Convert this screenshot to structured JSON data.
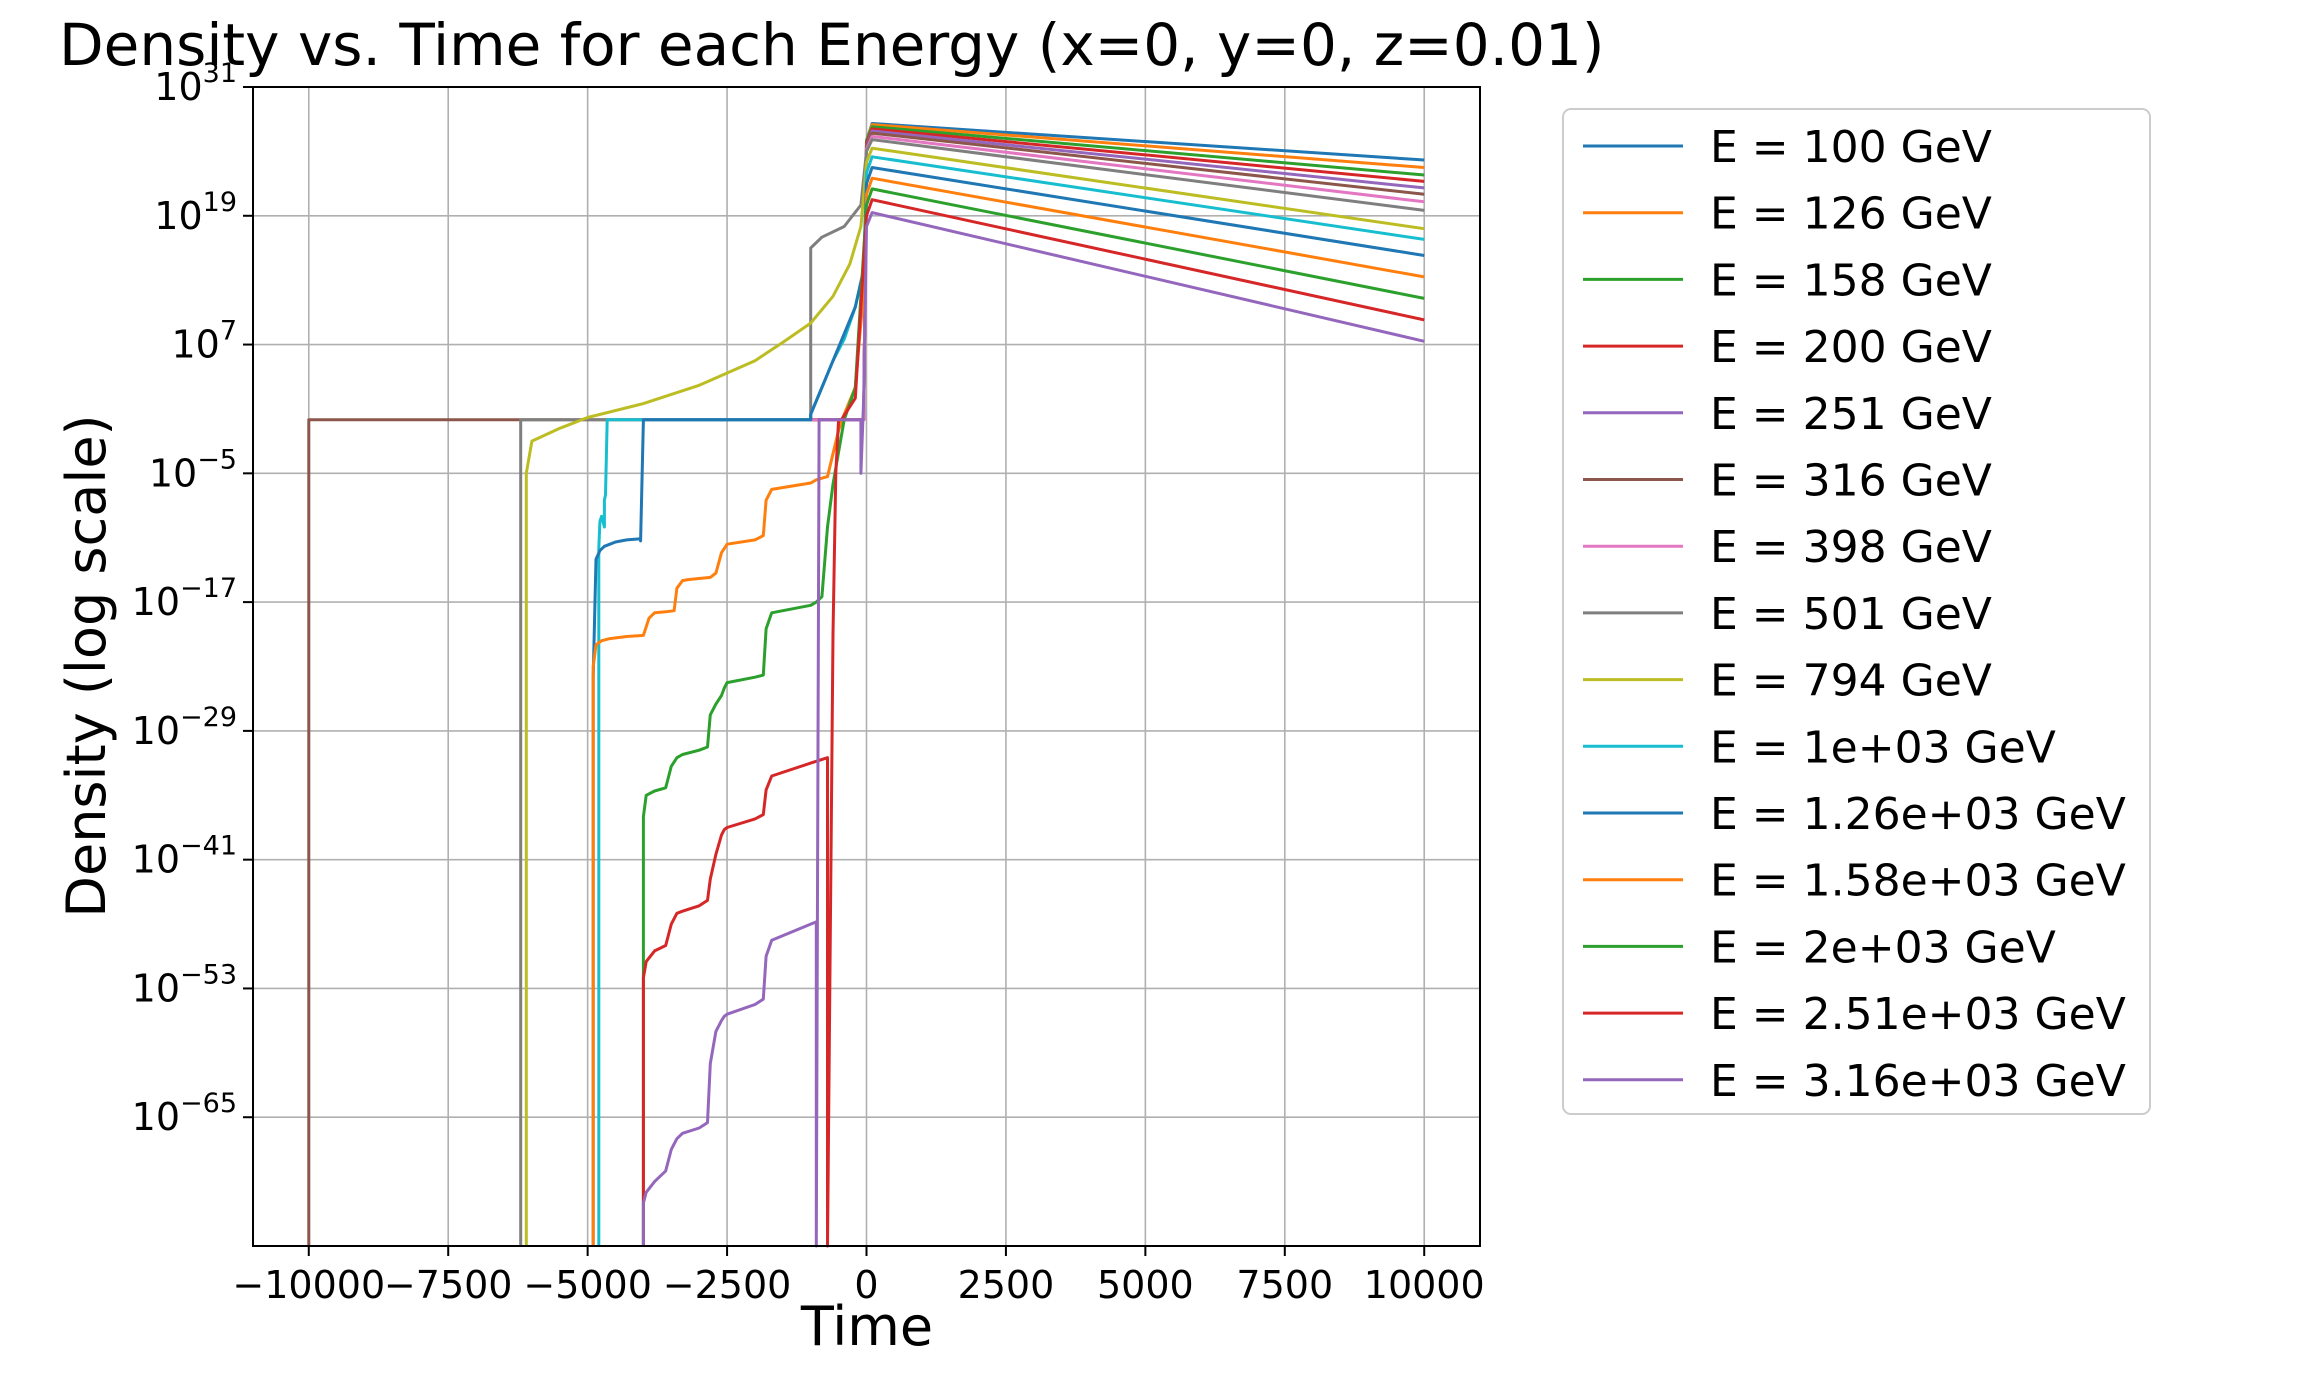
{
  "chart_data": {
    "type": "line",
    "title": "Density vs. Time for each Energy (x=0, y=0, z=0.01)",
    "xlabel": "Time",
    "ylabel": "Density (log scale)",
    "xlim": [
      -11000,
      11000
    ],
    "ylim_exponent": [
      -77,
      31
    ],
    "log_y": true,
    "grid": true,
    "legend_position": "outside right",
    "x_ticks": [
      {
        "value": -10000,
        "label": "−10000"
      },
      {
        "value": -7500,
        "label": "−7500"
      },
      {
        "value": -5000,
        "label": "−5000"
      },
      {
        "value": -2500,
        "label": "−2500"
      },
      {
        "value": 0,
        "label": "0"
      },
      {
        "value": 2500,
        "label": "2500"
      },
      {
        "value": 5000,
        "label": "5000"
      },
      {
        "value": 7500,
        "label": "7500"
      },
      {
        "value": 10000,
        "label": "10000"
      }
    ],
    "y_ticks": [
      {
        "exp": 31,
        "label": "31"
      },
      {
        "exp": 19,
        "label": "19"
      },
      {
        "exp": 7,
        "label": "7"
      },
      {
        "exp": -5,
        "label": "−5"
      },
      {
        "exp": -17,
        "label": "−17"
      },
      {
        "exp": -29,
        "label": "−29"
      },
      {
        "exp": -41,
        "label": "−41"
      },
      {
        "exp": -53,
        "label": "−53"
      },
      {
        "exp": -65,
        "label": "−65"
      }
    ],
    "tick_base": "10",
    "series": [
      {
        "name": "E = 100 GeV",
        "color": "#1f77b4",
        "x": [
          -1000,
          -400,
          -50,
          0,
          100,
          10000
        ],
        "y_exp": [
          0,
          0,
          0,
          26,
          27.6,
          24.2
        ]
      },
      {
        "name": "E = 126 GeV",
        "color": "#ff7f0e",
        "x": [
          -1000,
          -400,
          -50,
          0,
          100,
          10000
        ],
        "y_exp": [
          0,
          0,
          0,
          26,
          27.5,
          23.5
        ]
      },
      {
        "name": "E = 158 GeV",
        "color": "#2ca02c",
        "x": [
          -1000,
          -400,
          -50,
          0,
          100,
          10000
        ],
        "y_exp": [
          0,
          0,
          0,
          26,
          27.3,
          22.8
        ]
      },
      {
        "name": "E = 200 GeV",
        "color": "#d62728",
        "x": [
          -1000,
          -400,
          -50,
          0,
          100,
          10000
        ],
        "y_exp": [
          0,
          0,
          0,
          25.8,
          27.1,
          22.2
        ]
      },
      {
        "name": "E = 251 GeV",
        "color": "#9467bd",
        "x": [
          -1000,
          -400,
          -50,
          0,
          100,
          10000
        ],
        "y_exp": [
          0,
          0,
          0,
          25.6,
          26.9,
          21.6
        ]
      },
      {
        "name": "E = 316 GeV",
        "color": "#8c564b",
        "x": [
          -10000,
          -10000,
          -9950,
          -1000,
          -50,
          0,
          100,
          10000
        ],
        "y_exp": [
          -77,
          0,
          0,
          0,
          0,
          25.5,
          26.7,
          21
        ]
      },
      {
        "name": "E = 398 GeV",
        "color": "#e377c2",
        "x": [
          -1000,
          -400,
          -50,
          0,
          100,
          10000
        ],
        "y_exp": [
          0,
          0,
          0,
          25.2,
          26.4,
          20.3
        ]
      },
      {
        "name": "E = 501 GeV",
        "color": "#7f7f7f",
        "x": [
          -6200,
          -6200,
          -6150,
          -1000,
          -1000,
          -800,
          -400,
          -100,
          0,
          100,
          10000
        ],
        "y_exp": [
          -77,
          0,
          0,
          0,
          16,
          17,
          18,
          20,
          25,
          26.1,
          19.5
        ]
      },
      {
        "name": "E = 794 GeV",
        "color": "#bcbd22",
        "x": [
          -6100,
          -6100,
          -6000,
          -5500,
          -5000,
          -4000,
          -3000,
          -2000,
          -1500,
          -1000,
          -600,
          -300,
          -100,
          0,
          100,
          10000
        ],
        "y_exp": [
          -77,
          -5,
          -2,
          -0.8,
          0.2,
          1.5,
          3.2,
          5.5,
          7.2,
          9,
          11.5,
          14.5,
          18,
          24,
          25.3,
          17.8
        ]
      },
      {
        "name": "E = 1e+03 GeV",
        "color": "#17becf",
        "x": [
          -4800,
          -4800,
          -4780,
          -4750,
          -4700,
          -4700,
          -4680,
          -4650,
          -1000,
          -1000,
          -800,
          -600,
          -400,
          -200,
          -50,
          0,
          100,
          10000
        ],
        "y_exp": [
          -77,
          -12,
          -9.5,
          -9,
          -10,
          -7.5,
          -7,
          0,
          0,
          0.5,
          3,
          5.5,
          7.5,
          10.5,
          14,
          23,
          24.5,
          16.8
        ]
      },
      {
        "name": "E = 1.26e+03 GeV",
        "color": "#1f77b4",
        "x": [
          -4900,
          -4900,
          -4850,
          -4780,
          -4700,
          -4600,
          -4500,
          -4300,
          -4050,
          -4050,
          -4000,
          -1000,
          -1000,
          -800,
          -600,
          -400,
          -200,
          -50,
          0,
          100,
          10000
        ],
        "y_exp": [
          -77,
          -24,
          -13,
          -12.2,
          -11.8,
          -11.6,
          -11.4,
          -11.2,
          -11.1,
          -11.3,
          0,
          0,
          0.5,
          3,
          5.5,
          8,
          10.5,
          14,
          22,
          23.5,
          15.3
        ]
      },
      {
        "name": "E = 1.58e+03 GeV",
        "color": "#ff7f0e",
        "x": [
          -4900,
          -4900,
          -4850,
          -4750,
          -4600,
          -4300,
          -4000,
          -3900,
          -3800,
          -3600,
          -3450,
          -3400,
          -3300,
          -3200,
          -2800,
          -2700,
          -2600,
          -2500,
          -2000,
          -1850,
          -1800,
          -1700,
          -1000,
          -900,
          -700,
          -500,
          -400,
          -200,
          -50,
          0,
          100,
          10000
        ],
        "y_exp": [
          -77,
          -23,
          -21,
          -20.6,
          -20.4,
          -20.2,
          -20.1,
          -18.5,
          -18,
          -17.9,
          -17.8,
          -15.7,
          -15,
          -14.9,
          -14.7,
          -14.3,
          -12.4,
          -11.6,
          -11.2,
          -10.8,
          -7.5,
          -6.5,
          -5.9,
          -5.6,
          -5.3,
          -1,
          0.5,
          3,
          12,
          21,
          22.5,
          13.3
        ]
      },
      {
        "name": "E = 2e+03 GeV",
        "color": "#2ca02c",
        "x": [
          -4000,
          -4000,
          -3950,
          -3800,
          -3600,
          -3500,
          -3400,
          -3300,
          -3000,
          -2850,
          -2800,
          -2700,
          -2600,
          -2550,
          -2500,
          -2000,
          -1850,
          -1800,
          -1700,
          -1000,
          -900,
          -800,
          -700,
          -600,
          -500,
          -400,
          -200,
          0,
          100,
          10000
        ],
        "y_exp": [
          -77,
          -37,
          -35,
          -34.6,
          -34.3,
          -32.3,
          -31.5,
          -31.2,
          -30.8,
          -30.5,
          -27.5,
          -26.5,
          -25.7,
          -25,
          -24.5,
          -24,
          -23.8,
          -19.5,
          -18,
          -17.3,
          -17,
          -16.5,
          -10,
          -6,
          -3,
          0,
          3,
          20,
          21.5,
          11.3
        ]
      },
      {
        "name": "E = 2.51e+03 GeV",
        "color": "#d62728",
        "x": [
          -4000,
          -4000,
          -3950,
          -3800,
          -3600,
          -3500,
          -3400,
          -3300,
          -3000,
          -2850,
          -2800,
          -2700,
          -2600,
          -2550,
          -2500,
          -2000,
          -1850,
          -1800,
          -1700,
          -1000,
          -700,
          -700,
          -600,
          -550,
          -500,
          -450,
          -200,
          0,
          100,
          10000
        ],
        "y_exp": [
          -77,
          -52,
          -50.5,
          -49.5,
          -49,
          -47,
          -46,
          -45.8,
          -45.3,
          -44.8,
          -42.8,
          -40.5,
          -38.7,
          -38.2,
          -38,
          -37.2,
          -36.8,
          -34.5,
          -33.2,
          -32,
          -31.5,
          -77,
          -20,
          -5,
          0,
          0,
          2,
          19,
          20.5,
          9.3
        ]
      },
      {
        "name": "E = 3.16e+03 GeV",
        "color": "#9467bd",
        "x": [
          -4000,
          -4000,
          -3950,
          -3800,
          -3600,
          -3500,
          -3400,
          -3300,
          -3000,
          -2850,
          -2800,
          -2700,
          -2600,
          -2550,
          -2500,
          -2000,
          -1850,
          -1800,
          -1700,
          -1000,
          -900,
          -900,
          -850,
          -400,
          -100,
          -100,
          -50,
          0,
          100,
          10000
        ],
        "y_exp": [
          -77,
          -73,
          -72,
          -71,
          -70,
          -68,
          -67,
          -66.5,
          -66,
          -65.5,
          -60,
          -57,
          -56,
          -55.6,
          -55.4,
          -54.5,
          -54,
          -50,
          -48.5,
          -47,
          -46.8,
          -77,
          0,
          0,
          0,
          -5,
          2,
          18,
          19.3,
          7.3
        ]
      }
    ]
  }
}
